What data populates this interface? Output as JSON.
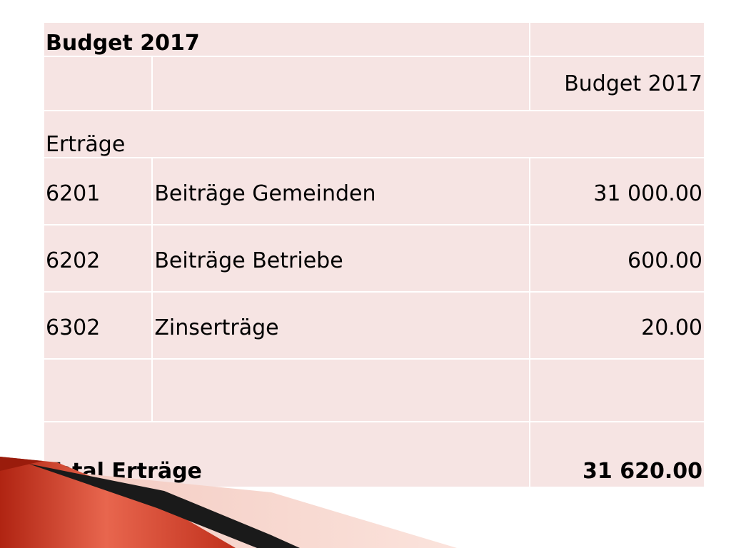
{
  "table": {
    "title": "Budget 2017",
    "column_header": "Budget 2017",
    "section_label": "Erträge",
    "rows": [
      {
        "account": "6201",
        "description": "Beiträge Gemeinden",
        "amount": "31 000.00"
      },
      {
        "account": "6202",
        "description": "Beiträge Betriebe",
        "amount": "600.00"
      },
      {
        "account": "6302",
        "description": "Zinserträge",
        "amount": "20.00"
      }
    ],
    "total_label": "Total Erträge",
    "total_amount": "31 620.00"
  },
  "colors": {
    "cell_background": "#f6e4e3",
    "decor_red": "#c0301c",
    "decor_dark": "#1a1a1a"
  }
}
